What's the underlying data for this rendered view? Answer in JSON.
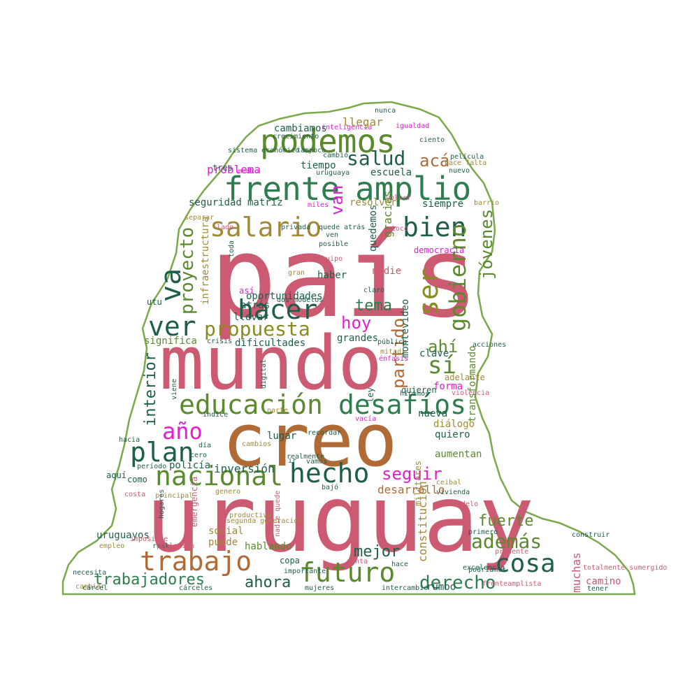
{
  "colors": {
    "rose": "#cc5a71",
    "olive": "#8a8a1e",
    "green": "#2e7d4f",
    "darkgreen": "#1e5e4a",
    "brown": "#b06a36",
    "magenta": "#e020d0",
    "leaf": "#5b8a2e",
    "khaki": "#a08a36",
    "outline": "#7aa84a"
  },
  "words": [
    {
      "text": "país",
      "color": "rose"
    },
    {
      "text": "uruguay",
      "color": "rose"
    },
    {
      "text": "mundo",
      "color": "rose"
    },
    {
      "text": "creo",
      "color": "brown"
    },
    {
      "text": "frente",
      "color": "green"
    },
    {
      "text": "amplio",
      "color": "green"
    },
    {
      "text": "podemos",
      "color": "leaf"
    },
    {
      "text": "educación",
      "color": "leaf"
    },
    {
      "text": "desafíos",
      "color": "green"
    },
    {
      "text": "hacer",
      "color": "darkgreen"
    },
    {
      "text": "ver",
      "color": "darkgreen"
    },
    {
      "text": "salario",
      "color": "khaki"
    },
    {
      "text": "bien",
      "color": "darkgreen"
    },
    {
      "text": "ser",
      "color": "olive"
    },
    {
      "text": "sí",
      "color": "leaf"
    },
    {
      "text": "gobierno",
      "color": "leaf"
    },
    {
      "text": "futuro",
      "color": "leaf"
    },
    {
      "text": "hecho",
      "color": "darkgreen"
    },
    {
      "text": "nacional",
      "color": "leaf"
    },
    {
      "text": "trabajo",
      "color": "brown"
    },
    {
      "text": "plan",
      "color": "darkgreen"
    },
    {
      "text": "año",
      "color": "magenta"
    },
    {
      "text": "cosa",
      "color": "darkgreen"
    },
    {
      "text": "además",
      "color": "leaf"
    },
    {
      "text": "va",
      "color": "darkgreen"
    },
    {
      "text": "propuesta",
      "color": "olive"
    },
    {
      "text": "proyecto",
      "color": "leaf"
    },
    {
      "text": "salud",
      "color": "darkgreen"
    },
    {
      "text": "acá",
      "color": "brown"
    },
    {
      "text": "van",
      "color": "magenta"
    },
    {
      "text": "jóvenes",
      "color": "leaf"
    },
    {
      "text": "hoy",
      "color": "magenta"
    },
    {
      "text": "tema",
      "color": "green"
    },
    {
      "text": "partido",
      "color": "brown"
    },
    {
      "text": "ahí",
      "color": "leaf"
    },
    {
      "text": "fuerte",
      "color": "leaf"
    },
    {
      "text": "mejor",
      "color": "darkgreen"
    },
    {
      "text": "derecho",
      "color": "green"
    },
    {
      "text": "ahora",
      "color": "darkgreen"
    },
    {
      "text": "trabajadores",
      "color": "green"
    },
    {
      "text": "seguir",
      "color": "magenta"
    },
    {
      "text": "interior",
      "color": "darkgreen"
    },
    {
      "text": "muchas",
      "color": "rose"
    },
    {
      "text": "transformando",
      "color": "leaf"
    },
    {
      "text": "constitución",
      "color": "khaki"
    },
    {
      "text": "desarrollo",
      "color": "brown"
    },
    {
      "text": "inversión",
      "color": "darkgreen"
    },
    {
      "text": "problema",
      "color": "magenta"
    },
    {
      "text": "llegar",
      "color": "khaki"
    },
    {
      "text": "cambiamos",
      "color": "darkgreen"
    },
    {
      "text": "tiempo",
      "color": "darkgreen"
    },
    {
      "text": "escuela",
      "color": "darkgreen"
    },
    {
      "text": "seguridad",
      "color": "darkgreen"
    },
    {
      "text": "matriz",
      "color": "darkgreen"
    },
    {
      "text": "resolver",
      "color": "khaki"
    },
    {
      "text": "siempre",
      "color": "darkgreen"
    },
    {
      "text": "gracias",
      "color": "leaf"
    },
    {
      "text": "quedemos",
      "color": "darkgreen"
    },
    {
      "text": "oportunidades",
      "color": "darkgreen"
    },
    {
      "text": "atrás",
      "color": "darkgreen"
    },
    {
      "text": "llevar",
      "color": "darkgreen"
    },
    {
      "text": "dificultades",
      "color": "darkgreen"
    },
    {
      "text": "grandes",
      "color": "darkgreen"
    },
    {
      "text": "montevideo",
      "color": "darkgreen"
    },
    {
      "text": "clave",
      "color": "darkgreen"
    },
    {
      "text": "infraestructura",
      "color": "khaki"
    },
    {
      "text": "significa",
      "color": "leaf"
    },
    {
      "text": "haber",
      "color": "darkgreen"
    },
    {
      "text": "nadie",
      "color": "rose"
    },
    {
      "text": "nueva",
      "color": "darkgreen"
    },
    {
      "text": "diálogo",
      "color": "khaki"
    },
    {
      "text": "quiero",
      "color": "darkgreen"
    },
    {
      "text": "forma",
      "color": "magenta"
    },
    {
      "text": "lugar",
      "color": "darkgreen"
    },
    {
      "text": "aumentan",
      "color": "leaf"
    },
    {
      "text": "uruguayos",
      "color": "darkgreen"
    },
    {
      "text": "social",
      "color": "khaki"
    },
    {
      "text": "hablando",
      "color": "leaf"
    },
    {
      "text": "puede",
      "color": "khaki"
    },
    {
      "text": "copa",
      "color": "darkgreen"
    },
    {
      "text": "rumbo",
      "color": "darkgreen"
    },
    {
      "text": "camino",
      "color": "rose"
    },
    {
      "text": "militares",
      "color": "khaki"
    },
    {
      "text": "emergencia",
      "color": "rose"
    },
    {
      "text": "policía",
      "color": "darkgreen"
    },
    {
      "text": "como",
      "color": "darkgreen"
    },
    {
      "text": "aquí",
      "color": "darkgreen"
    },
    {
      "text": "ley",
      "color": "darkgreen"
    },
    {
      "text": "tres",
      "color": "darkgreen"
    },
    {
      "text": "así",
      "color": "magenta"
    },
    {
      "text": "utu",
      "color": "darkgreen"
    },
    {
      "text": "democracia",
      "color": "magenta"
    },
    {
      "text": "adelante",
      "color": "khaki"
    },
    {
      "text": "quieren",
      "color": "darkgreen"
    },
    {
      "text": "hicimos",
      "color": "darkgreen"
    },
    {
      "text": "empleo",
      "color": "khaki"
    },
    {
      "text": "cambiar",
      "color": "khaki"
    },
    {
      "text": "cárcel",
      "color": "darkgreen"
    },
    {
      "text": "cárceles",
      "color": "darkgreen"
    },
    {
      "text": "mujeres",
      "color": "darkgreen"
    },
    {
      "text": "intercambio",
      "color": "darkgreen"
    },
    {
      "text": "frenteamplista",
      "color": "rose"
    },
    {
      "text": "excelencia",
      "color": "darkgreen"
    },
    {
      "text": "totalmente sumergido",
      "color": "rose"
    },
    {
      "text": "tener",
      "color": "darkgreen"
    },
    {
      "text": "real",
      "color": "darkgreen"
    },
    {
      "text": "imposible",
      "color": "rose"
    },
    {
      "text": "productiva",
      "color": "khaki"
    },
    {
      "text": "segunda generación",
      "color": "khaki"
    },
    {
      "text": "nadie quede",
      "color": "rose"
    },
    {
      "text": "importante",
      "color": "darkgreen"
    },
    {
      "text": "punta",
      "color": "rose"
    },
    {
      "text": "hace",
      "color": "darkgreen"
    },
    {
      "text": "podríamos",
      "color": "darkgreen"
    },
    {
      "text": "presente",
      "color": "rose"
    },
    {
      "text": "primero",
      "color": "darkgreen"
    },
    {
      "text": "construir",
      "color": "darkgreen"
    },
    {
      "text": "modelo",
      "color": "rose"
    },
    {
      "text": "vivienda",
      "color": "darkgreen"
    },
    {
      "text": "ceibal",
      "color": "khaki"
    },
    {
      "text": "cambios",
      "color": "khaki"
    },
    {
      "text": "cero",
      "color": "darkgreen"
    },
    {
      "text": "día",
      "color": "darkgreen"
    },
    {
      "text": "período",
      "color": "darkgreen"
    },
    {
      "text": "genero",
      "color": "khaki"
    },
    {
      "text": "principal",
      "color": "khaki"
    },
    {
      "text": "costa",
      "color": "rose"
    },
    {
      "text": "hogares",
      "color": "darkgreen"
    },
    {
      "text": "población",
      "color": "rose"
    },
    {
      "text": "necesita",
      "color": "darkgreen"
    },
    {
      "text": "hacia",
      "color": "darkgreen"
    },
    {
      "text": "viene",
      "color": "darkgreen"
    },
    {
      "text": "índice",
      "color": "darkgreen"
    },
    {
      "text": "digital",
      "color": "darkgreen"
    },
    {
      "text": "parte",
      "color": "khaki"
    },
    {
      "text": "vacía",
      "color": "magenta"
    },
    {
      "text": "realmente",
      "color": "darkgreen"
    },
    {
      "text": "ir",
      "color": "darkgreen"
    },
    {
      "text": "vamos",
      "color": "darkgreen"
    },
    {
      "text": "recordar",
      "color": "darkgreen"
    },
    {
      "text": "bajó",
      "color": "darkgreen"
    },
    {
      "text": "acciones",
      "color": "darkgreen"
    },
    {
      "text": "pública",
      "color": "darkgreen"
    },
    {
      "text": "mitad",
      "color": "khaki"
    },
    {
      "text": "énfasis",
      "color": "magenta"
    },
    {
      "text": "violencia",
      "color": "rose"
    },
    {
      "text": "gran",
      "color": "khaki"
    },
    {
      "text": "equipo",
      "color": "rose"
    },
    {
      "text": "posible",
      "color": "darkgreen"
    },
    {
      "text": "ven",
      "color": "darkgreen"
    },
    {
      "text": "quede atrás",
      "color": "darkgreen"
    },
    {
      "text": "lado",
      "color": "rose"
    },
    {
      "text": "privada",
      "color": "darkgreen"
    },
    {
      "text": "separar",
      "color": "khaki"
    },
    {
      "text": "crisis",
      "color": "darkgreen"
    },
    {
      "text": "claro",
      "color": "darkgreen"
    },
    {
      "text": "dos modelos",
      "color": "darkgreen"
    },
    {
      "text": "toda",
      "color": "darkgreen"
    },
    {
      "text": "miles",
      "color": "magenta"
    },
    {
      "text": "uruguaya",
      "color": "darkgreen"
    },
    {
      "text": "medio",
      "color": "magenta"
    },
    {
      "text": "sistema económico",
      "color": "darkgreen"
    },
    {
      "text": "tampoco",
      "color": "darkgreen"
    },
    {
      "text": "cambió",
      "color": "darkgreen"
    },
    {
      "text": "crecimiento",
      "color": "darkgreen"
    },
    {
      "text": "inteligencia",
      "color": "magenta"
    },
    {
      "text": "igualdad",
      "color": "magenta"
    },
    {
      "text": "nunca",
      "color": "darkgreen"
    },
    {
      "text": "ciento",
      "color": "darkgreen"
    },
    {
      "text": "película",
      "color": "darkgreen"
    },
    {
      "text": "hace falta",
      "color": "khaki"
    },
    {
      "text": "nuevo",
      "color": "darkgreen"
    },
    {
      "text": "volver",
      "color": "rose"
    },
    {
      "text": "barrio",
      "color": "khaki"
    },
    {
      "text": "tocó",
      "color": "rose"
    },
    {
      "text": "funcionan",
      "color": "darkgreen"
    },
    {
      "text": "lejos",
      "color": "magenta"
    },
    {
      "text": "zona",
      "color": "magenta"
    },
    {
      "text": "ve",
      "color": "magenta"
    },
    {
      "text": "aumenta pbi",
      "color": "darkgreen"
    }
  ]
}
